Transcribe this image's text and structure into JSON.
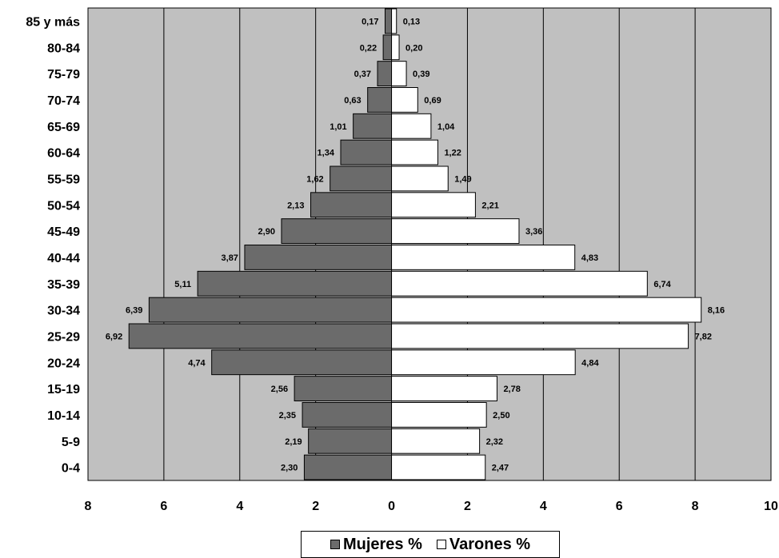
{
  "chart_data": {
    "type": "bar",
    "orientation": "horizontal-pyramid",
    "categories": [
      "85 y más",
      "80-84",
      "75-79",
      "70-74",
      "65-69",
      "60-64",
      "55-59",
      "50-54",
      "45-49",
      "40-44",
      "35-39",
      "30-34",
      "25-29",
      "20-24",
      "15-19",
      "10-14",
      "5-9",
      "0-4"
    ],
    "series": [
      {
        "name": "Mujeres %",
        "side": "left",
        "color": "#6b6b6b",
        "values": [
          0.17,
          0.22,
          0.37,
          0.63,
          1.01,
          1.34,
          1.62,
          2.13,
          2.9,
          3.87,
          5.11,
          6.39,
          6.92,
          4.74,
          2.56,
          2.35,
          2.19,
          2.3
        ],
        "labels": [
          "0,17",
          "0,22",
          "0,37",
          "0,63",
          "1,01",
          "1,34",
          "1,62",
          "2,13",
          "2,90",
          "3,87",
          "5,11",
          "6,39",
          "6,92",
          "4,74",
          "2,56",
          "2,35",
          "2,19",
          "2,30"
        ]
      },
      {
        "name": "Varones %",
        "side": "right",
        "color": "#ffffff",
        "values": [
          0.13,
          0.2,
          0.39,
          0.69,
          1.04,
          1.22,
          1.49,
          2.21,
          3.36,
          4.83,
          6.74,
          8.16,
          7.82,
          4.84,
          2.78,
          2.5,
          2.32,
          2.47
        ],
        "labels": [
          "0,13",
          "0,20",
          "0,39",
          "0,69",
          "1,04",
          "1,22",
          "1,49",
          "2,21",
          "3,36",
          "4,83",
          "6,74",
          "8,16",
          "7,82",
          "4,84",
          "2,78",
          "2,50",
          "2,32",
          "2,47"
        ]
      }
    ],
    "xlim": [
      -8,
      10
    ],
    "xticks": [
      -8,
      -6,
      -4,
      -2,
      0,
      2,
      4,
      6,
      8,
      10
    ],
    "xtick_labels": [
      "8",
      "6",
      "4",
      "2",
      "0",
      "2",
      "4",
      "6",
      "8",
      "10"
    ],
    "grid": true,
    "plot_background": "#c0c0c0",
    "legend_position": "bottom-center"
  },
  "legend": {
    "mujeres": "Mujeres %",
    "varones": "Varones %"
  }
}
